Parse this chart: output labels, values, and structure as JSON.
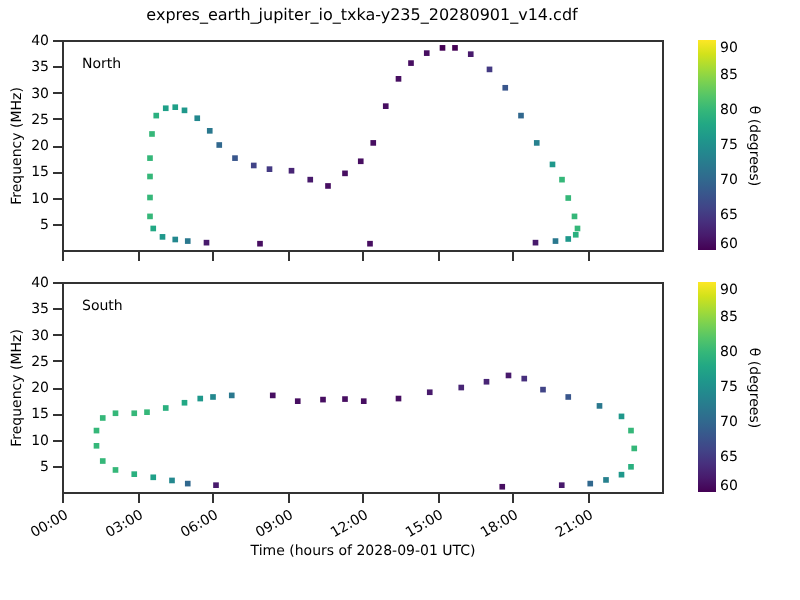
{
  "chart_data": [
    {
      "type": "scatter",
      "title": "expres_earth_jupiter_io_txka-y235_20280901_v14.cdf",
      "ylabel": "Frequency (MHz)",
      "clabel": "θ (degrees)",
      "annotations": [
        "North"
      ],
      "x": [
        3.52,
        3.52,
        3.52,
        3.52,
        3.6,
        3.77,
        4.15,
        4.53,
        4.9,
        5.41,
        5.91,
        6.29,
        6.92,
        7.67,
        8.3,
        9.18,
        9.93,
        10.64,
        11.32,
        11.95,
        12.45,
        12.95,
        13.46,
        13.96,
        14.59,
        15.22,
        15.72,
        16.35,
        17.1,
        17.73,
        18.36,
        18.99,
        19.62,
        20.0,
        20.25,
        20.5,
        20.62,
        20.55,
        20.25,
        19.74,
        18.94,
        3.65,
        4.02,
        4.53,
        5.03,
        5.78,
        7.92,
        12.32
      ],
      "values": [
        6.4,
        10,
        14,
        17.5,
        22.1,
        25.6,
        27.0,
        27.2,
        26.6,
        25.1,
        22.7,
        20.0,
        17.5,
        16.1,
        15.4,
        15.1,
        13.4,
        12.2,
        14.6,
        16.9,
        20.4,
        27.4,
        32.6,
        35.6,
        37.5,
        38.5,
        38.5,
        37.3,
        34.4,
        30.9,
        25.6,
        20.4,
        16.3,
        13.4,
        9.9,
        6.4,
        4.1,
        2.9,
        2.1,
        1.7,
        1.4,
        4.1,
        2.5,
        2.0,
        1.7,
        1.4,
        1.2,
        1.2
      ],
      "cvalues": [
        80,
        80,
        80,
        80,
        80,
        79,
        77,
        77,
        76,
        74,
        72,
        70,
        68,
        66,
        65,
        63,
        62,
        61,
        61,
        61,
        61,
        61,
        61,
        61,
        61,
        60,
        60,
        62,
        65,
        68,
        70,
        73,
        76,
        80,
        80,
        80,
        80,
        79,
        76,
        72,
        62,
        78,
        76,
        74,
        72,
        62,
        61,
        61
      ],
      "xlim": [
        0,
        24
      ],
      "xticks": [
        0,
        3,
        6,
        9,
        12,
        15,
        18,
        21
      ],
      "ylim": [
        0,
        40
      ],
      "yticks": [
        5,
        10,
        15,
        20,
        25,
        30,
        35,
        40
      ],
      "clim": [
        60,
        90
      ],
      "cticks": [
        60,
        65,
        70,
        75,
        80,
        85,
        90
      ],
      "marker": "square",
      "grid": false,
      "tick_labels": "y"
    },
    {
      "type": "scatter",
      "xlabel": "Time (hours of 2028-09-01 UTC)",
      "ylabel": "Frequency (MHz)",
      "clabel": "θ (degrees)",
      "annotations": [
        "South"
      ],
      "x": [
        6.79,
        6.04,
        5.53,
        4.9,
        4.15,
        3.4,
        2.89,
        2.14,
        1.63,
        1.38,
        1.38,
        1.63,
        2.14,
        2.89,
        3.65,
        4.4,
        5.03,
        6.16,
        8.43,
        9.43,
        10.44,
        11.32,
        12.07,
        13.46,
        14.71,
        15.97,
        16.98,
        17.86,
        18.49,
        19.24,
        20.25,
        21.5,
        22.38,
        22.76,
        22.89,
        22.76,
        22.38,
        21.76,
        21.13,
        19.99,
        17.61
      ],
      "values": [
        18.4,
        18.1,
        17.8,
        17.0,
        16.0,
        15.2,
        15.0,
        15.0,
        14.1,
        11.7,
        8.8,
        5.9,
        4.2,
        3.4,
        2.8,
        2.2,
        1.6,
        1.3,
        18.4,
        17.3,
        17.6,
        17.7,
        17.3,
        17.8,
        19.0,
        19.9,
        21.0,
        22.2,
        21.6,
        19.5,
        18.1,
        16.4,
        14.4,
        11.7,
        8.3,
        4.8,
        3.3,
        2.3,
        1.6,
        1.3,
        1.0
      ],
      "cvalues": [
        72,
        74,
        76,
        78,
        79,
        80,
        80,
        80,
        80,
        80,
        80,
        80,
        80,
        79,
        77,
        74,
        70,
        62,
        61,
        61,
        61,
        61,
        61,
        61,
        62,
        63,
        63,
        62,
        64,
        66,
        68,
        72,
        76,
        80,
        80,
        79,
        76,
        73,
        70,
        62,
        61
      ],
      "xlim": [
        0,
        24
      ],
      "xticks": [
        {
          "value": 0,
          "label": "00:00"
        },
        {
          "value": 3,
          "label": "03:00"
        },
        {
          "value": 6,
          "label": "06:00"
        },
        {
          "value": 9,
          "label": "09:00"
        },
        {
          "value": 12,
          "label": "12:00"
        },
        {
          "value": 15,
          "label": "15:00"
        },
        {
          "value": 18,
          "label": "18:00"
        },
        {
          "value": 21,
          "label": "21:00"
        }
      ],
      "ylim": [
        0,
        40
      ],
      "yticks": [
        5,
        10,
        15,
        20,
        25,
        30,
        35,
        40
      ],
      "clim": [
        60,
        90
      ],
      "cticks": [
        60,
        65,
        70,
        75,
        80,
        85,
        90
      ],
      "marker": "square",
      "grid": false
    }
  ]
}
